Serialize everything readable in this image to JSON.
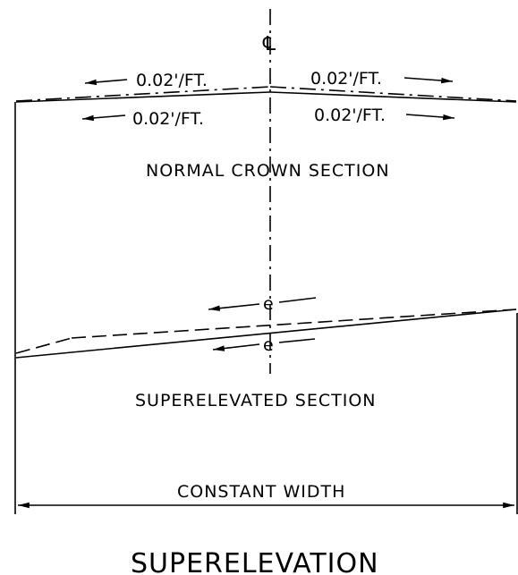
{
  "labels": {
    "centerline_symbol": "℄",
    "slope_upper_left": "0.02'/FT.",
    "slope_upper_right": "0.02'/FT.",
    "slope_lower_left": "0.02'/FT.",
    "slope_lower_right": "0.02'/FT.",
    "normal_crown_title": "NORMAL CROWN SECTION",
    "super_slope_upper": "e",
    "super_slope_lower": "e",
    "superelevated_title": "SUPERELEVATED SECTION",
    "width_label": "CONSTANT WIDTH",
    "main_title": "SUPERELEVATION"
  },
  "colors": {
    "line": "#000000",
    "background": "#ffffff"
  }
}
